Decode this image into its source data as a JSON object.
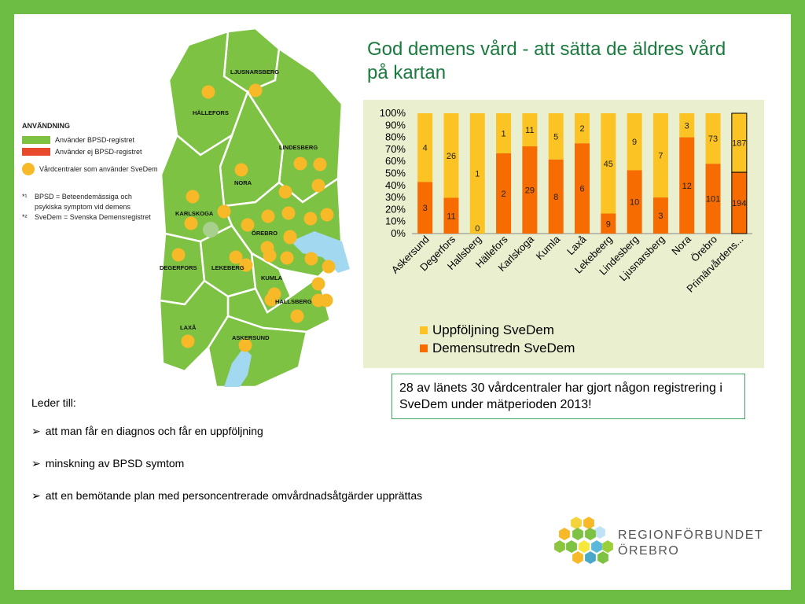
{
  "title": "God demens vård - att sätta de äldres vård på kartan",
  "colors": {
    "green": "#7dc242",
    "red": "#e8492c",
    "orange": "#f76c00",
    "yellow": "#fcc324",
    "dot": "#f7b928",
    "water": "#a3d9f0",
    "chart_bg": "#eaf0cf"
  },
  "legend": {
    "title": "ANVÄNDNING",
    "uses_bpsd": "Använder BPSD-registret",
    "not_bpsd": "Använder ej BPSD-registret",
    "uses_svedem": "Vårdcentraler som använder SveDem",
    "note1_mark": "*¹",
    "note1_text": "BPSD = Beteendemässiga och psykiska symptom vid demens",
    "note2_mark": "*²",
    "note2_text": "SveDem = Svenska Demensregistret"
  },
  "map_labels": [
    "LJUSNARSBERG",
    "HÄLLEFORS",
    "LINDESBERG",
    "NORA",
    "KARLSKOGA",
    "ÖREBRO",
    "DEGERFORS",
    "LEKEBERG",
    "KUMLA",
    "HALLSBERG",
    "LAXÅ",
    "ASKERSUND"
  ],
  "chart_data": {
    "type": "bar",
    "stacked": "percent",
    "categories": [
      "Askersund",
      "Degerfors",
      "Hallsberg",
      "Hällefors",
      "Karlskoga",
      "Kumla",
      "Laxå",
      "Lekebeerg",
      "Lindesberg",
      "Ljusnarsberg",
      "Nora",
      "Örebro",
      "Primärvårdens..."
    ],
    "series": [
      {
        "name": "Demensutredn SveDem",
        "values": [
          3,
          11,
          0,
          2,
          29,
          8,
          6,
          9,
          10,
          3,
          12,
          101,
          194
        ],
        "color": "#f76c00"
      },
      {
        "name": "Uppföljning SveDem",
        "values": [
          4,
          26,
          1,
          1,
          11,
          5,
          2,
          45,
          9,
          7,
          3,
          73,
          187
        ],
        "color": "#fcc324"
      }
    ],
    "yticks": [
      "100%",
      "90%",
      "80%",
      "70%",
      "60%",
      "50%",
      "40%",
      "30%",
      "20%",
      "10%",
      "0%"
    ],
    "ylim": [
      0,
      100
    ],
    "highlight_category": "Primärvårdens...",
    "legend_position": "bottom"
  },
  "note_box": "28 av länets 30 vårdcentraler har gjort någon registrering i SveDem under mätperioden 2013!",
  "bullets": {
    "lead": "Leder till:",
    "arrow": "➢",
    "items": [
      "att man får en diagnos och får en uppföljning",
      "minskning av BPSD symtom",
      "att en bemötande plan med personcentrerade omvårdnadsåtgärder upprättas"
    ]
  },
  "logo": {
    "line1": "REGIONFÖRBUNDET",
    "line2": "ÖREBRO"
  }
}
